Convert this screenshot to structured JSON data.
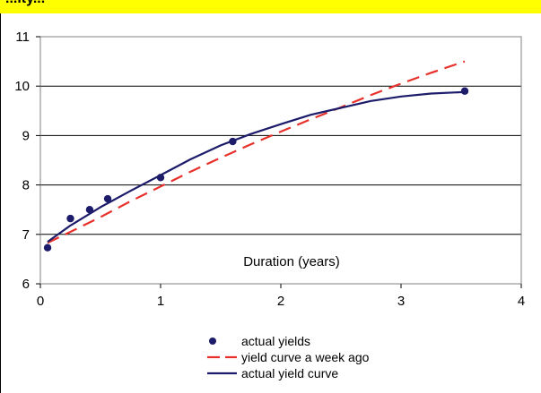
{
  "header": {
    "text": "...ity..."
  },
  "colors": {
    "header_bg": "#ffff00",
    "actual_yields": "#1c1c6b",
    "yield_curve_week_ago": "#e8302a",
    "actual_yield_curve": "#1c1c6b",
    "gridline": "#000000",
    "plot_border": "#808080"
  },
  "chart_data": {
    "type": "line",
    "title": "",
    "xlabel": "",
    "ylabel": "",
    "annotation": "Duration (years)",
    "xlim": [
      0,
      4
    ],
    "ylim": [
      6,
      11
    ],
    "x_ticks": [
      "0",
      "1",
      "2",
      "3",
      "4"
    ],
    "y_ticks": [
      "6",
      "7",
      "8",
      "9",
      "10",
      "11"
    ],
    "grid": "horizontal",
    "legend_position": "bottom",
    "series": [
      {
        "name": "actual yields",
        "style": "markers",
        "x": [
          0.06,
          0.25,
          0.41,
          0.56,
          1.0,
          1.6,
          3.53
        ],
        "y": [
          6.73,
          7.32,
          7.5,
          7.72,
          8.15,
          8.88,
          9.9
        ]
      },
      {
        "name": "yield curve a week ago",
        "style": "dashed",
        "x": [
          0.06,
          0.25,
          0.5,
          0.75,
          1.0,
          1.25,
          1.5,
          1.75,
          2.0,
          2.25,
          2.5,
          2.75,
          3.0,
          3.25,
          3.53
        ],
        "y": [
          6.83,
          7.05,
          7.35,
          7.67,
          7.97,
          8.27,
          8.55,
          8.82,
          9.08,
          9.33,
          9.57,
          9.82,
          10.05,
          10.27,
          10.5
        ]
      },
      {
        "name": "actual yield curve",
        "style": "solid",
        "x": [
          0.06,
          0.25,
          0.5,
          0.75,
          1.0,
          1.25,
          1.5,
          1.75,
          2.0,
          2.25,
          2.5,
          2.75,
          3.0,
          3.25,
          3.53
        ],
        "y": [
          6.85,
          7.18,
          7.55,
          7.88,
          8.2,
          8.52,
          8.8,
          9.03,
          9.23,
          9.42,
          9.56,
          9.7,
          9.79,
          9.85,
          9.88
        ]
      }
    ]
  }
}
